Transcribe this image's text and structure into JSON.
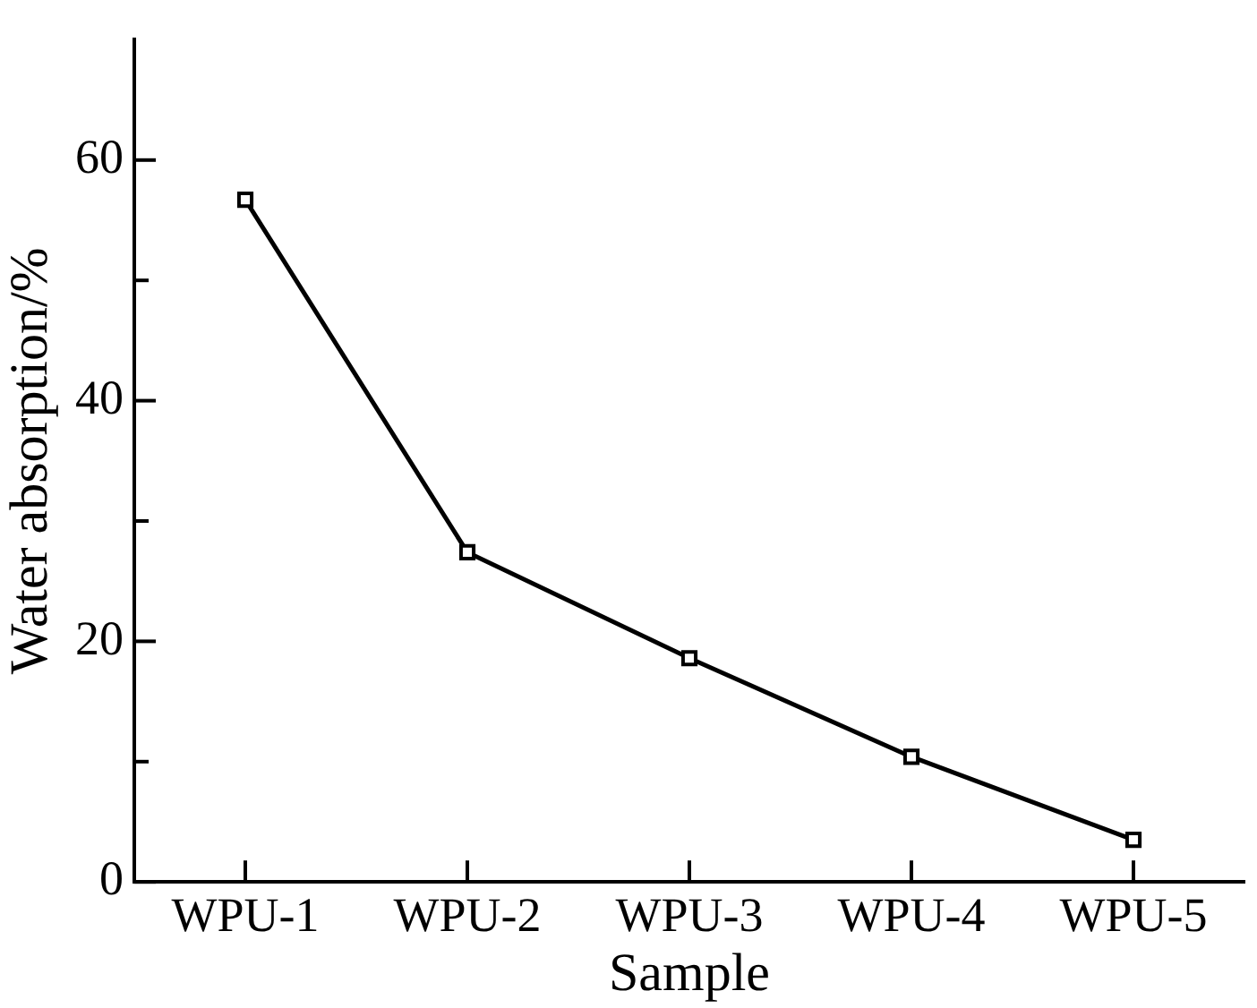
{
  "chart_data": {
    "type": "line",
    "xlabel": "Sample",
    "ylabel": "Water absorption/%",
    "categories": [
      "WPU-1",
      "WPU-2",
      "WPU-3",
      "WPU-4",
      "WPU-5"
    ],
    "series": [
      {
        "color": "#000000",
        "values": [
          56.7,
          27.4,
          18.6,
          10.4,
          3.5
        ]
      }
    ],
    "ylim": [
      0,
      70
    ],
    "yticks": [
      0,
      {
        "value": 10,
        "label": null
      },
      20,
      {
        "value": 30,
        "label": null
      },
      40,
      {
        "value": 50,
        "label": null
      },
      60
    ],
    "grid": false,
    "legend": false,
    "marker": "square",
    "line_style": "solid"
  }
}
